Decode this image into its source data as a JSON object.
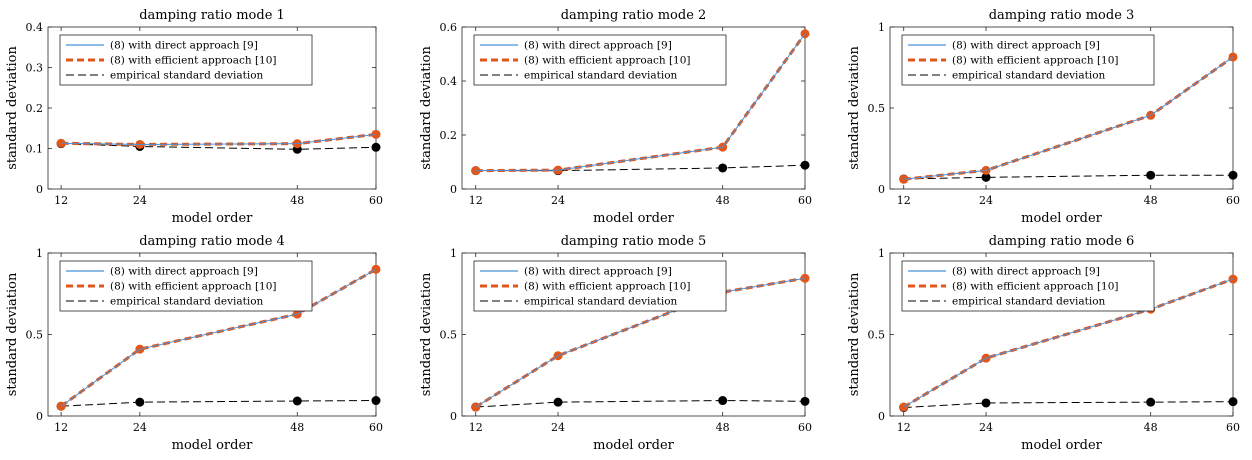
{
  "chart_data": [
    {
      "type": "line",
      "title": "damping ratio mode 1",
      "xlabel": "model order",
      "ylabel": "standard deviation",
      "x": [
        12,
        24,
        48,
        60
      ],
      "xlim": [
        10,
        60
      ],
      "ylim": [
        0,
        0.4
      ],
      "yticks": [
        0,
        0.1,
        0.2,
        0.3,
        0.4
      ],
      "grid": false,
      "legend_position": "top-left",
      "series": [
        {
          "name": "(8) with direct approach [9]",
          "values": [
            0.113,
            0.11,
            0.112,
            0.135
          ],
          "color": "#4a90d9",
          "style": "solid"
        },
        {
          "name": "(8) with efficient approach [10]",
          "values": [
            0.113,
            0.11,
            0.112,
            0.135
          ],
          "color": "#e0561b",
          "style": "dashed-thick",
          "markers": true
        },
        {
          "name": "empirical standard deviation",
          "values": [
            0.112,
            0.105,
            0.098,
            0.103
          ],
          "color": "#000000",
          "style": "dashed",
          "markers": true
        }
      ]
    },
    {
      "type": "line",
      "title": "damping ratio mode 2",
      "xlabel": "model order",
      "ylabel": "standard deviation",
      "x": [
        12,
        24,
        48,
        60
      ],
      "xlim": [
        10,
        60
      ],
      "ylim": [
        0,
        0.6
      ],
      "yticks": [
        0,
        0.2,
        0.4,
        0.6
      ],
      "grid": false,
      "legend_position": "top-left",
      "series": [
        {
          "name": "(8) with direct approach [9]",
          "values": [
            0.068,
            0.07,
            0.155,
            0.575
          ],
          "color": "#4a90d9",
          "style": "solid"
        },
        {
          "name": "(8) with efficient approach [10]",
          "values": [
            0.068,
            0.07,
            0.155,
            0.575
          ],
          "color": "#e0561b",
          "style": "dashed-thick",
          "markers": true
        },
        {
          "name": "empirical standard deviation",
          "values": [
            0.068,
            0.068,
            0.078,
            0.088
          ],
          "color": "#000000",
          "style": "dashed",
          "markers": true
        }
      ]
    },
    {
      "type": "line",
      "title": "damping ratio mode 3",
      "xlabel": "model order",
      "ylabel": "standard deviation",
      "x": [
        12,
        24,
        48,
        60
      ],
      "xlim": [
        10,
        60
      ],
      "ylim": [
        0,
        1
      ],
      "yticks": [
        0,
        0.5,
        1
      ],
      "grid": false,
      "legend_position": "top-left",
      "series": [
        {
          "name": "(8) with direct approach [9]",
          "values": [
            0.06,
            0.115,
            0.455,
            0.815
          ],
          "color": "#4a90d9",
          "style": "solid"
        },
        {
          "name": "(8) with efficient approach [10]",
          "values": [
            0.06,
            0.115,
            0.455,
            0.815
          ],
          "color": "#e0561b",
          "style": "dashed-thick",
          "markers": true
        },
        {
          "name": "empirical standard deviation",
          "values": [
            0.062,
            0.072,
            0.085,
            0.085
          ],
          "color": "#000000",
          "style": "dashed",
          "markers": true
        }
      ]
    },
    {
      "type": "line",
      "title": "damping ratio mode 4",
      "xlabel": "model order",
      "ylabel": "standard deviation",
      "x": [
        12,
        24,
        48,
        60
      ],
      "xlim": [
        10,
        60
      ],
      "ylim": [
        0,
        1
      ],
      "yticks": [
        0,
        0.5,
        1
      ],
      "grid": false,
      "legend_position": "top-left",
      "series": [
        {
          "name": "(8) with direct approach [9]",
          "values": [
            0.06,
            0.41,
            0.625,
            0.9
          ],
          "color": "#4a90d9",
          "style": "solid"
        },
        {
          "name": "(8) with efficient approach [10]",
          "values": [
            0.06,
            0.41,
            0.625,
            0.9
          ],
          "color": "#e0561b",
          "style": "dashed-thick",
          "markers": true
        },
        {
          "name": "empirical standard deviation",
          "values": [
            0.06,
            0.085,
            0.092,
            0.095
          ],
          "color": "#000000",
          "style": "dashed",
          "markers": true
        }
      ]
    },
    {
      "type": "line",
      "title": "damping ratio mode 5",
      "xlabel": "model order",
      "ylabel": "standard deviation",
      "x": [
        12,
        24,
        48,
        60
      ],
      "xlim": [
        10,
        60
      ],
      "ylim": [
        0,
        1
      ],
      "yticks": [
        0,
        0.5,
        1
      ],
      "grid": false,
      "legend_position": "top-left",
      "series": [
        {
          "name": "(8) with direct approach [9]",
          "values": [
            0.055,
            0.37,
            0.76,
            0.845
          ],
          "color": "#4a90d9",
          "style": "solid"
        },
        {
          "name": "(8) with efficient approach [10]",
          "values": [
            0.055,
            0.37,
            0.76,
            0.845
          ],
          "color": "#e0561b",
          "style": "dashed-thick",
          "markers": true
        },
        {
          "name": "empirical standard deviation",
          "values": [
            0.055,
            0.085,
            0.095,
            0.09
          ],
          "color": "#000000",
          "style": "dashed",
          "markers": true
        }
      ]
    },
    {
      "type": "line",
      "title": "damping ratio mode 6",
      "xlabel": "model order",
      "ylabel": "standard deviation",
      "x": [
        12,
        24,
        48,
        60
      ],
      "xlim": [
        10,
        60
      ],
      "ylim": [
        0,
        1
      ],
      "yticks": [
        0,
        0.5,
        1
      ],
      "grid": false,
      "legend_position": "top-left",
      "series": [
        {
          "name": "(8) with direct approach [9]",
          "values": [
            0.055,
            0.355,
            0.655,
            0.84
          ],
          "color": "#4a90d9",
          "style": "solid"
        },
        {
          "name": "(8) with efficient approach [10]",
          "values": [
            0.055,
            0.355,
            0.655,
            0.84
          ],
          "color": "#e0561b",
          "style": "dashed-thick",
          "markers": true
        },
        {
          "name": "empirical standard deviation",
          "values": [
            0.052,
            0.08,
            0.085,
            0.088
          ],
          "color": "#000000",
          "style": "dashed",
          "markers": true
        }
      ]
    }
  ]
}
